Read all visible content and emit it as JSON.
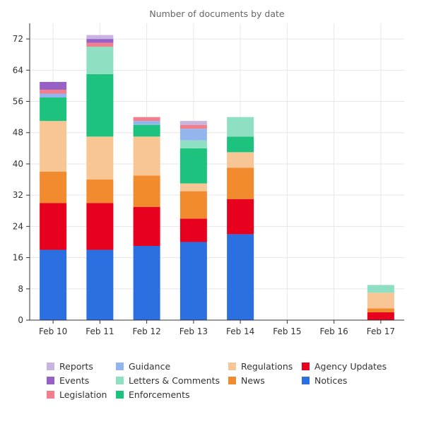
{
  "chart_data": {
    "type": "bar",
    "stacked": true,
    "title": "Number of documents by date",
    "xlabel": "",
    "ylabel": "",
    "ylim": [
      0,
      76
    ],
    "yticks": [
      0,
      8,
      16,
      24,
      32,
      40,
      48,
      56,
      64,
      72
    ],
    "grid": true,
    "legend_position": "bottom",
    "categories": [
      "Feb 10",
      "Feb 11",
      "Feb 12",
      "Feb 13",
      "Feb 14",
      "Feb 15",
      "Feb 16",
      "Feb 17"
    ],
    "series": [
      {
        "name": "Notices",
        "color": "#2c6fe0",
        "values": [
          18,
          18,
          19,
          20,
          22,
          0,
          0,
          0
        ]
      },
      {
        "name": "Agency Updates",
        "color": "#e8001f",
        "values": [
          12,
          12,
          10,
          6,
          9,
          0,
          0,
          2
        ]
      },
      {
        "name": "News",
        "color": "#f28a2e",
        "values": [
          8,
          6,
          8,
          7,
          8,
          0,
          0,
          1
        ]
      },
      {
        "name": "Regulations",
        "color": "#f8c594",
        "values": [
          13,
          11,
          10,
          2,
          4,
          0,
          0,
          4
        ]
      },
      {
        "name": "Enforcements",
        "color": "#1cc27e",
        "values": [
          6,
          16,
          3,
          9,
          4,
          0,
          0,
          0
        ]
      },
      {
        "name": "Letters & Comments",
        "color": "#8fe0c2",
        "values": [
          0,
          7,
          0,
          2,
          5,
          0,
          0,
          2
        ]
      },
      {
        "name": "Guidance",
        "color": "#93b5ee",
        "values": [
          1,
          0,
          1,
          3,
          0,
          0,
          0,
          0
        ]
      },
      {
        "name": "Legislation",
        "color": "#f07e8c",
        "values": [
          1,
          1,
          1,
          1,
          0,
          0,
          0,
          0
        ]
      },
      {
        "name": "Events",
        "color": "#9760c4",
        "values": [
          2,
          1,
          0,
          0,
          0,
          0,
          0,
          0
        ]
      },
      {
        "name": "Reports",
        "color": "#c8b4e0",
        "values": [
          0,
          1,
          0,
          1,
          0,
          0,
          0,
          0
        ]
      }
    ]
  },
  "legend": {
    "columns": [
      [
        "Reports",
        "Events",
        "Legislation"
      ],
      [
        "Guidance",
        "Letters & Comments",
        "Enforcements"
      ],
      [
        "Regulations",
        "News"
      ],
      [
        "Agency Updates",
        "Notices"
      ]
    ]
  }
}
